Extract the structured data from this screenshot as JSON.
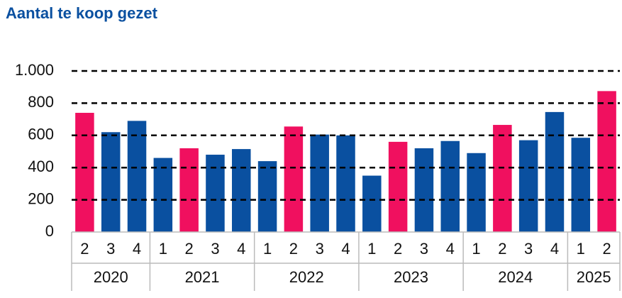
{
  "chart_data": {
    "type": "bar",
    "title": "Aantal te koop gezet",
    "groups": [
      {
        "name": "2020",
        "categories": [
          "2",
          "3",
          "4"
        ],
        "values": [
          740,
          620,
          690
        ],
        "colors": [
          "#f0105f",
          "#0a50a0",
          "#0a50a0"
        ]
      },
      {
        "name": "2021",
        "categories": [
          "1",
          "2",
          "3",
          "4"
        ],
        "values": [
          460,
          520,
          480,
          515
        ],
        "colors": [
          "#0a50a0",
          "#f0105f",
          "#0a50a0",
          "#0a50a0"
        ]
      },
      {
        "name": "2022",
        "categories": [
          "1",
          "2",
          "3",
          "4"
        ],
        "values": [
          440,
          655,
          605,
          600
        ],
        "colors": [
          "#0a50a0",
          "#f0105f",
          "#0a50a0",
          "#0a50a0"
        ]
      },
      {
        "name": "2023",
        "categories": [
          "1",
          "2",
          "3",
          "4"
        ],
        "values": [
          350,
          560,
          520,
          565
        ],
        "colors": [
          "#0a50a0",
          "#f0105f",
          "#0a50a0",
          "#0a50a0"
        ]
      },
      {
        "name": "2024",
        "categories": [
          "1",
          "2",
          "3",
          "4"
        ],
        "values": [
          490,
          665,
          570,
          745
        ],
        "colors": [
          "#0a50a0",
          "#f0105f",
          "#0a50a0",
          "#0a50a0"
        ]
      },
      {
        "name": "2025",
        "categories": [
          "1",
          "2"
        ],
        "values": [
          585,
          875
        ],
        "colors": [
          "#0a50a0",
          "#f0105f"
        ]
      }
    ],
    "ylim": [
      0,
      1000
    ],
    "yticks": [
      0,
      200,
      400,
      600,
      800,
      {
        "value": 1000,
        "label": "1.000"
      }
    ],
    "grid": true
  }
}
